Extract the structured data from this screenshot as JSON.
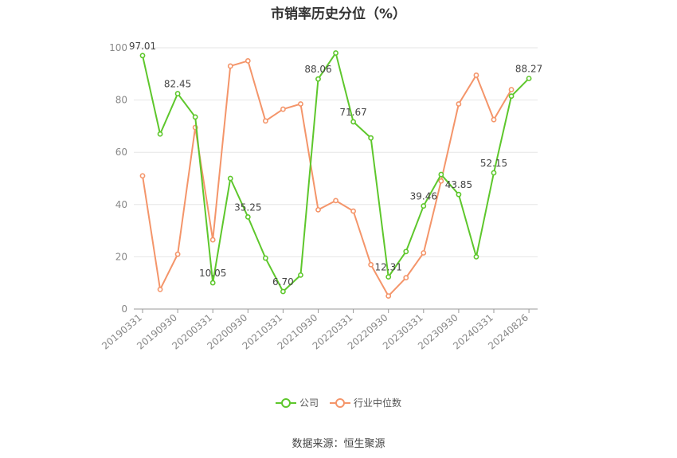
{
  "chart_data": {
    "type": "line",
    "title": "市销率历史分位（%）",
    "ylim": [
      0,
      100
    ],
    "yticks": [
      0,
      20,
      40,
      60,
      80,
      100
    ],
    "x_tick_labels": [
      "20190331",
      "20190930",
      "20200331",
      "20200930",
      "20210331",
      "20210930",
      "20220331",
      "20220930",
      "20230331",
      "20230930",
      "20240331",
      "20240826"
    ],
    "x_tick_index": [
      0,
      2,
      4,
      6,
      8,
      10,
      12,
      14,
      16,
      18,
      20,
      22
    ],
    "grid": true,
    "legend_position": "bottom",
    "series": [
      {
        "name": "公司",
        "color": "#5ec72c",
        "values": [
          97.01,
          67.0,
          82.45,
          73.5,
          10.05,
          50.0,
          35.25,
          19.5,
          6.7,
          13.0,
          88.06,
          98.0,
          71.67,
          65.5,
          12.31,
          22.0,
          39.46,
          51.5,
          43.85,
          20.0,
          52.15,
          81.5,
          88.27
        ],
        "labels": {
          "0": "97.01",
          "2": "82.45",
          "4": "10.05",
          "6": "35.25",
          "8": "6.70",
          "10": "88.06",
          "12": "71.67",
          "14": "12.31",
          "16": "39.46",
          "18": "43.85",
          "20": "52.15",
          "22": "88.27"
        }
      },
      {
        "name": "行业中位数",
        "color": "#f4956a",
        "values": [
          51.0,
          7.5,
          21.0,
          69.5,
          26.5,
          93.0,
          95.0,
          72.0,
          76.5,
          78.5,
          38.0,
          41.5,
          37.5,
          17.0,
          5.0,
          12.0,
          21.5,
          49.0,
          78.5,
          89.5,
          72.5,
          84.0,
          null
        ]
      }
    ]
  },
  "source_text": "数据来源：恒生聚源"
}
